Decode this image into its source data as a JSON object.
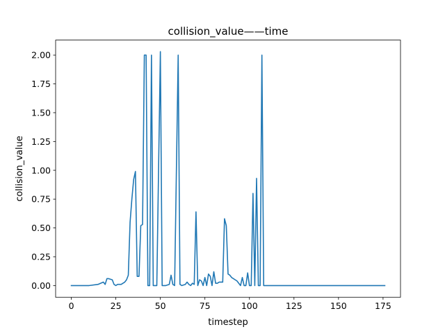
{
  "chart_data": {
    "type": "line",
    "title": "collision_value——time",
    "xlabel": "timestep",
    "ylabel": "collision_value",
    "xlim": [
      -8.8,
      184.8
    ],
    "ylim": [
      -0.1015,
      2.13
    ],
    "xticks": [
      0,
      25,
      50,
      75,
      100,
      125,
      150,
      175
    ],
    "xtick_labels": [
      "0",
      "25",
      "50",
      "75",
      "100",
      "125",
      "150",
      "175"
    ],
    "yticks": [
      0.0,
      0.25,
      0.5,
      0.75,
      1.0,
      1.25,
      1.5,
      1.75,
      2.0
    ],
    "ytick_labels": [
      "0.00",
      "0.25",
      "0.50",
      "0.75",
      "1.00",
      "1.25",
      "1.50",
      "1.75",
      "2.00"
    ],
    "grid": false,
    "color": "#1f77b4",
    "series": [
      {
        "x": [
          0,
          10,
          15,
          18,
          19,
          20,
          21,
          23,
          24,
          25,
          26,
          28,
          30,
          31,
          32,
          33,
          34,
          35,
          36,
          37,
          38,
          39,
          40,
          41,
          42,
          43,
          44,
          45,
          46,
          47,
          48,
          50,
          51,
          52,
          53,
          55,
          56,
          57,
          58,
          60,
          61,
          62,
          64,
          65,
          66,
          67,
          68,
          69,
          70,
          71,
          72,
          73,
          74,
          75,
          76,
          77,
          78,
          79,
          80,
          81,
          82,
          83,
          85,
          86,
          87,
          88,
          89,
          90,
          93,
          95,
          96,
          97,
          98,
          99,
          100,
          101,
          102,
          103,
          104,
          105,
          106,
          107,
          108,
          109,
          110,
          120,
          150,
          176
        ],
        "y": [
          0.0,
          0.0,
          0.01,
          0.03,
          0.01,
          0.06,
          0.06,
          0.05,
          0.01,
          0.0,
          0.01,
          0.01,
          0.03,
          0.05,
          0.09,
          0.55,
          0.75,
          0.92,
          0.99,
          0.08,
          0.08,
          0.52,
          0.53,
          2.0,
          2.0,
          0.0,
          0.0,
          2.0,
          0.0,
          0.0,
          0.0,
          2.03,
          0.0,
          0.0,
          0.0,
          0.01,
          0.09,
          0.01,
          0.0,
          2.0,
          0.01,
          0.0,
          0.01,
          0.03,
          0.01,
          0.0,
          0.02,
          0.01,
          0.64,
          0.0,
          0.05,
          0.04,
          0.0,
          0.07,
          0.0,
          0.1,
          0.08,
          0.0,
          0.12,
          0.02,
          0.02,
          0.03,
          0.03,
          0.58,
          0.52,
          0.1,
          0.09,
          0.07,
          0.04,
          0.0,
          0.07,
          0.0,
          0.0,
          0.11,
          0.0,
          0.0,
          0.8,
          0.0,
          0.93,
          0.0,
          0.0,
          2.0,
          0.0,
          0.0,
          0.0,
          0.0,
          0.0,
          0.0
        ]
      }
    ]
  }
}
